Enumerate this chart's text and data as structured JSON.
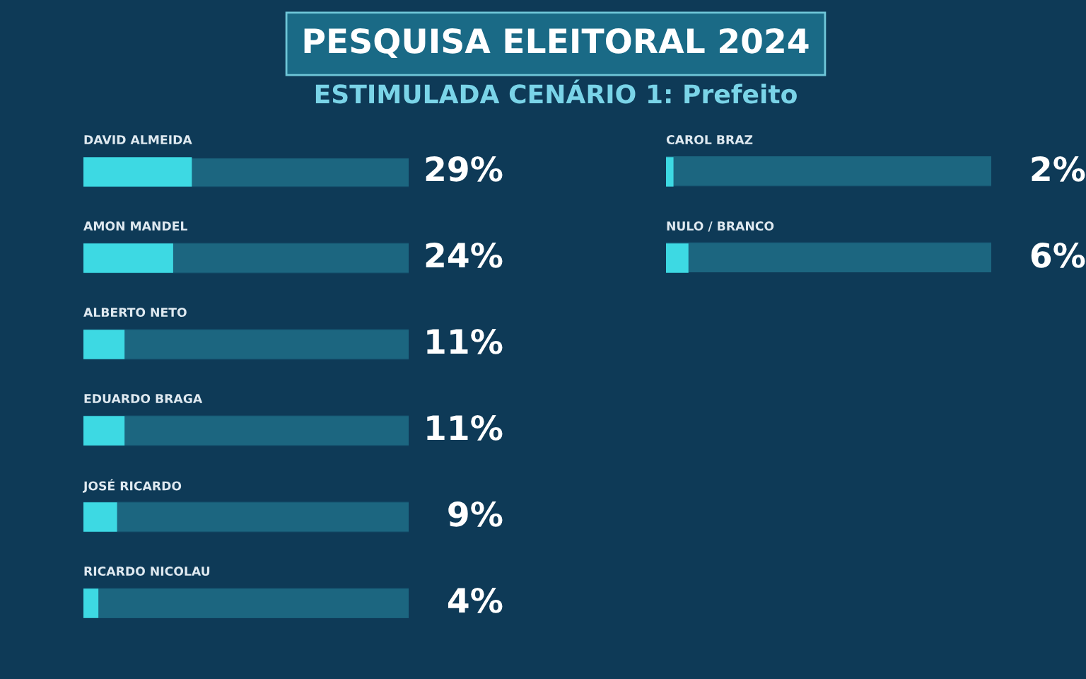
{
  "chart_data": [
    {
      "type": "bar",
      "orientation": "horizontal",
      "title": "PESQUISA ELEITORAL 2024",
      "subtitle": "ESTIMULADA CENÁRIO 1: Prefeito",
      "categories": [
        "DAVID ALMEIDA",
        "AMON MANDEL",
        "ALBERTO NETO",
        "EDUARDO BRAGA",
        "JOSÉ RICARDO",
        "RICARDO NICOLAU"
      ],
      "values": [
        29,
        24,
        11,
        11,
        9,
        4
      ],
      "value_labels": [
        "29%",
        "24%",
        "11%",
        "11%",
        "9%",
        "4%"
      ],
      "color": "#3dd9e3",
      "xlim": [
        0,
        87
      ],
      "tick_labels": "y"
    },
    {
      "type": "bar",
      "orientation": "horizontal",
      "categories": [
        "CAROL BRAZ",
        "NULO / BRANCO"
      ],
      "values": [
        2,
        6
      ],
      "value_labels": [
        "2%",
        "6%"
      ],
      "color": "#3dd9e3",
      "xlim": [
        0,
        87
      ],
      "tick_labels": "y"
    }
  ]
}
